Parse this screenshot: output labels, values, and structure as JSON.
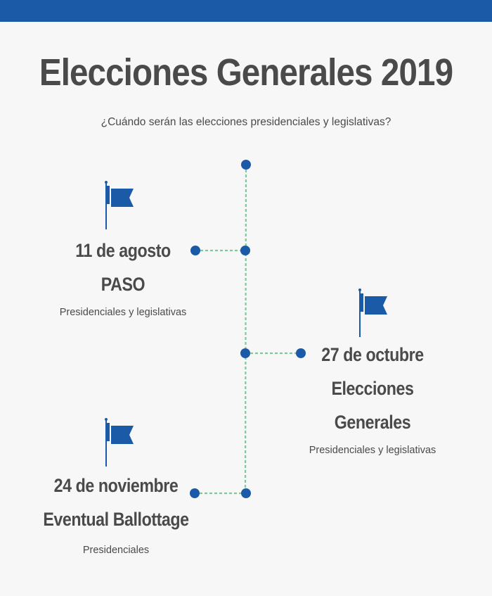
{
  "header": {
    "title": "Elecciones Generales 2019",
    "subtitle": "¿Cuándo serán las elecciones presidenciales y legislativas?"
  },
  "colors": {
    "topbar": "#1b5aa6",
    "dot": "#1b5aa6",
    "connector": "#7ec8a0",
    "flag": "#1b5aa6"
  },
  "events": [
    {
      "date": "11 de agosto",
      "name": "PASO",
      "description": "Presidenciales y legislativas"
    },
    {
      "date": "27 de octubre",
      "name_line1": "Elecciones",
      "name_line2": "Generales",
      "description": "Presidenciales y legislativas"
    },
    {
      "date": "24 de noviembre",
      "name": "Eventual Ballottage",
      "description": "Presidenciales"
    }
  ]
}
